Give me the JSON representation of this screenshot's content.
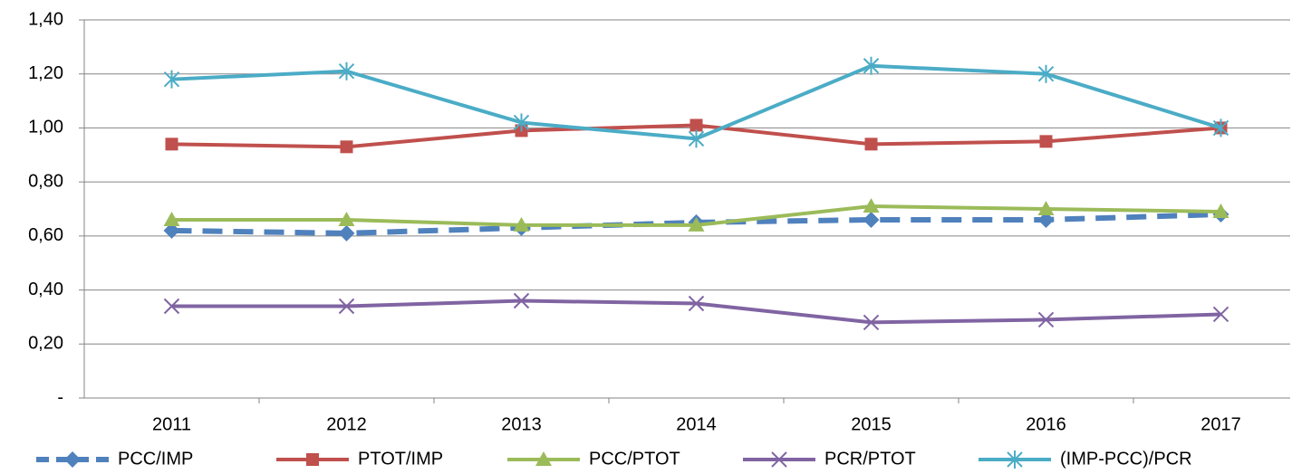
{
  "chart_data": {
    "type": "line",
    "categories": [
      "2011",
      "2012",
      "2013",
      "2014",
      "2015",
      "2016",
      "2017"
    ],
    "series": [
      {
        "name": "PCC/IMP",
        "color": "#4f81bd",
        "marker": "diamond",
        "dashed": true,
        "values": [
          0.62,
          0.61,
          0.63,
          0.65,
          0.66,
          0.66,
          0.68
        ]
      },
      {
        "name": "PTOT/IMP",
        "color": "#c0504d",
        "marker": "square",
        "values": [
          0.94,
          0.93,
          0.99,
          1.01,
          0.94,
          0.95,
          1.0
        ]
      },
      {
        "name": "PCC/PTOT",
        "color": "#9bbb59",
        "marker": "triangle",
        "values": [
          0.66,
          0.66,
          0.64,
          0.64,
          0.71,
          0.7,
          0.69
        ]
      },
      {
        "name": "PCR/PTOT",
        "color": "#8064a2",
        "marker": "x",
        "values": [
          0.34,
          0.34,
          0.36,
          0.35,
          0.28,
          0.29,
          0.31
        ]
      },
      {
        "name": "(IMP-PCC)/PCR",
        "color": "#4bacc6",
        "marker": "star",
        "values": [
          1.18,
          1.21,
          1.02,
          0.96,
          1.23,
          1.2,
          1.0
        ]
      }
    ],
    "ylim": [
      0,
      1.4
    ],
    "yticks": [
      {
        "value": 0,
        "label": "-"
      },
      {
        "value": 0.2,
        "label": "0,20"
      },
      {
        "value": 0.4,
        "label": "0,40"
      },
      {
        "value": 0.6,
        "label": "0,60"
      },
      {
        "value": 0.8,
        "label": "0,80"
      },
      {
        "value": 1.0,
        "label": "1,00"
      },
      {
        "value": 1.2,
        "label": "1,20"
      },
      {
        "value": 1.4,
        "label": "1,40"
      }
    ],
    "grid": true,
    "legend": "bottom"
  }
}
